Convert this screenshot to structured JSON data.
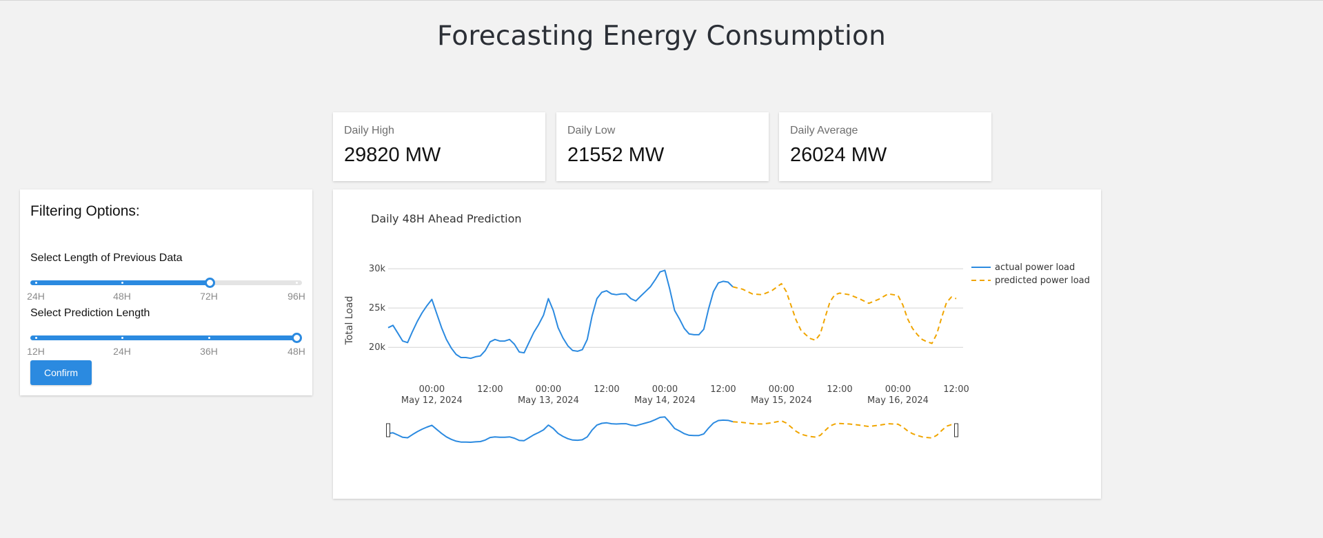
{
  "page": {
    "title": "Forecasting Energy Consumption"
  },
  "stats": [
    {
      "label": "Daily High",
      "value": "29820 MW"
    },
    {
      "label": "Daily Low",
      "value": "21552 MW"
    },
    {
      "label": "Daily Average",
      "value": "26024 MW"
    }
  ],
  "filters": {
    "title": "Filtering Options:",
    "previous": {
      "label": "Select Length of Previous Data",
      "marks": [
        "24H",
        "48H",
        "72H",
        "96H"
      ],
      "selected": "72H",
      "value_fraction": 0.6667
    },
    "prediction": {
      "label": "Select Prediction Length",
      "marks": [
        "12H",
        "24H",
        "36H",
        "48H"
      ],
      "selected": "48H",
      "value_fraction": 1.0
    },
    "confirm_label": "Confirm"
  },
  "colors": {
    "actual": "#2b8ae0",
    "predicted": "#f0a500",
    "accent": "#2b8ae0"
  },
  "chart_data": {
    "type": "line",
    "title": "Daily 48H Ahead Prediction",
    "ylabel": "Total Load",
    "xlabel": "",
    "ylim": [
      18000,
      30800
    ],
    "yticks": [
      20000,
      25000,
      30000
    ],
    "ytick_labels": [
      "20k",
      "25k",
      "30k"
    ],
    "xlim": [
      "2024-05-11T15:00",
      "2024-05-16T12:00"
    ],
    "xticks": [
      {
        "t": "2024-05-12T00:00",
        "label": "00:00",
        "sublabel": "May 12, 2024"
      },
      {
        "t": "2024-05-12T12:00",
        "label": "12:00",
        "sublabel": ""
      },
      {
        "t": "2024-05-13T00:00",
        "label": "00:00",
        "sublabel": "May 13, 2024"
      },
      {
        "t": "2024-05-13T12:00",
        "label": "12:00",
        "sublabel": ""
      },
      {
        "t": "2024-05-14T00:00",
        "label": "00:00",
        "sublabel": "May 14, 2024"
      },
      {
        "t": "2024-05-14T12:00",
        "label": "12:00",
        "sublabel": ""
      },
      {
        "t": "2024-05-15T00:00",
        "label": "00:00",
        "sublabel": "May 15, 2024"
      },
      {
        "t": "2024-05-15T12:00",
        "label": "12:00",
        "sublabel": ""
      },
      {
        "t": "2024-05-16T00:00",
        "label": "00:00",
        "sublabel": "May 16, 2024"
      },
      {
        "t": "2024-05-16T12:00",
        "label": "12:00",
        "sublabel": ""
      }
    ],
    "grid": true,
    "legend_position": "right",
    "series": [
      {
        "name": "actual power load",
        "style": "solid",
        "points": [
          [
            "2024-05-11T15:00",
            22500
          ],
          [
            "2024-05-11T16:00",
            22800
          ],
          [
            "2024-05-11T17:00",
            21800
          ],
          [
            "2024-05-11T18:00",
            20800
          ],
          [
            "2024-05-11T19:00",
            20600
          ],
          [
            "2024-05-11T20:00",
            22000
          ],
          [
            "2024-05-11T21:00",
            23300
          ],
          [
            "2024-05-11T22:00",
            24400
          ],
          [
            "2024-05-11T23:00",
            25300
          ],
          [
            "2024-05-12T00:00",
            26100
          ],
          [
            "2024-05-12T01:00",
            24300
          ],
          [
            "2024-05-12T02:00",
            22500
          ],
          [
            "2024-05-12T03:00",
            21000
          ],
          [
            "2024-05-12T04:00",
            19900
          ],
          [
            "2024-05-12T05:00",
            19100
          ],
          [
            "2024-05-12T06:00",
            18700
          ],
          [
            "2024-05-12T07:00",
            18700
          ],
          [
            "2024-05-12T08:00",
            18600
          ],
          [
            "2024-05-12T09:00",
            18800
          ],
          [
            "2024-05-12T10:00",
            18900
          ],
          [
            "2024-05-12T11:00",
            19600
          ],
          [
            "2024-05-12T12:00",
            20700
          ],
          [
            "2024-05-12T13:00",
            21000
          ],
          [
            "2024-05-12T14:00",
            20800
          ],
          [
            "2024-05-12T15:00",
            20800
          ],
          [
            "2024-05-12T16:00",
            21000
          ],
          [
            "2024-05-12T17:00",
            20400
          ],
          [
            "2024-05-12T18:00",
            19400
          ],
          [
            "2024-05-12T19:00",
            19300
          ],
          [
            "2024-05-12T20:00",
            20600
          ],
          [
            "2024-05-12T21:00",
            21900
          ],
          [
            "2024-05-12T22:00",
            22900
          ],
          [
            "2024-05-12T23:00",
            24100
          ],
          [
            "2024-05-13T00:00",
            26200
          ],
          [
            "2024-05-13T01:00",
            24700
          ],
          [
            "2024-05-13T02:00",
            22500
          ],
          [
            "2024-05-13T03:00",
            21200
          ],
          [
            "2024-05-13T04:00",
            20200
          ],
          [
            "2024-05-13T05:00",
            19600
          ],
          [
            "2024-05-13T06:00",
            19500
          ],
          [
            "2024-05-13T07:00",
            19700
          ],
          [
            "2024-05-13T08:00",
            21000
          ],
          [
            "2024-05-13T09:00",
            24000
          ],
          [
            "2024-05-13T10:00",
            26200
          ],
          [
            "2024-05-13T11:00",
            27000
          ],
          [
            "2024-05-13T12:00",
            27200
          ],
          [
            "2024-05-13T13:00",
            26800
          ],
          [
            "2024-05-13T14:00",
            26700
          ],
          [
            "2024-05-13T15:00",
            26800
          ],
          [
            "2024-05-13T16:00",
            26800
          ],
          [
            "2024-05-13T17:00",
            26200
          ],
          [
            "2024-05-13T18:00",
            25900
          ],
          [
            "2024-05-13T19:00",
            26500
          ],
          [
            "2024-05-13T20:00",
            27100
          ],
          [
            "2024-05-13T21:00",
            27700
          ],
          [
            "2024-05-13T22:00",
            28600
          ],
          [
            "2024-05-13T23:00",
            29600
          ],
          [
            "2024-05-14T00:00",
            29800
          ],
          [
            "2024-05-14T01:00",
            27400
          ],
          [
            "2024-05-14T02:00",
            24700
          ],
          [
            "2024-05-14T03:00",
            23600
          ],
          [
            "2024-05-14T04:00",
            22400
          ],
          [
            "2024-05-14T05:00",
            21700
          ],
          [
            "2024-05-14T06:00",
            21600
          ],
          [
            "2024-05-14T07:00",
            21600
          ],
          [
            "2024-05-14T08:00",
            22300
          ],
          [
            "2024-05-14T09:00",
            24900
          ],
          [
            "2024-05-14T10:00",
            27100
          ],
          [
            "2024-05-14T11:00",
            28200
          ],
          [
            "2024-05-14T12:00",
            28400
          ],
          [
            "2024-05-14T13:00",
            28300
          ],
          [
            "2024-05-14T14:00",
            27700
          ]
        ]
      },
      {
        "name": "predicted power load",
        "style": "dashed",
        "points": [
          [
            "2024-05-14T14:00",
            27700
          ],
          [
            "2024-05-14T16:00",
            27400
          ],
          [
            "2024-05-14T18:00",
            26800
          ],
          [
            "2024-05-14T20:00",
            26700
          ],
          [
            "2024-05-14T22:00",
            27200
          ],
          [
            "2024-05-15T00:00",
            28100
          ],
          [
            "2024-05-15T01:00",
            27100
          ],
          [
            "2024-05-15T02:00",
            25300
          ],
          [
            "2024-05-15T03:00",
            23500
          ],
          [
            "2024-05-15T04:00",
            22200
          ],
          [
            "2024-05-15T05:00",
            21600
          ],
          [
            "2024-05-15T06:00",
            21100
          ],
          [
            "2024-05-15T07:00",
            20900
          ],
          [
            "2024-05-15T08:00",
            21700
          ],
          [
            "2024-05-15T09:00",
            23800
          ],
          [
            "2024-05-15T10:00",
            25800
          ],
          [
            "2024-05-15T11:00",
            26700
          ],
          [
            "2024-05-15T12:00",
            26900
          ],
          [
            "2024-05-15T14:00",
            26700
          ],
          [
            "2024-05-15T16:00",
            26200
          ],
          [
            "2024-05-15T18:00",
            25600
          ],
          [
            "2024-05-15T20:00",
            26100
          ],
          [
            "2024-05-15T22:00",
            26800
          ],
          [
            "2024-05-16T00:00",
            26600
          ],
          [
            "2024-05-16T01:00",
            25400
          ],
          [
            "2024-05-16T02:00",
            23600
          ],
          [
            "2024-05-16T03:00",
            22400
          ],
          [
            "2024-05-16T04:00",
            21600
          ],
          [
            "2024-05-16T05:00",
            21000
          ],
          [
            "2024-05-16T06:00",
            20700
          ],
          [
            "2024-05-16T07:00",
            20500
          ],
          [
            "2024-05-16T08:00",
            21700
          ],
          [
            "2024-05-16T09:00",
            23800
          ],
          [
            "2024-05-16T10:00",
            25700
          ],
          [
            "2024-05-16T11:00",
            26400
          ],
          [
            "2024-05-16T12:00",
            26200
          ]
        ]
      }
    ],
    "zoom_range": [
      0,
      1
    ]
  }
}
